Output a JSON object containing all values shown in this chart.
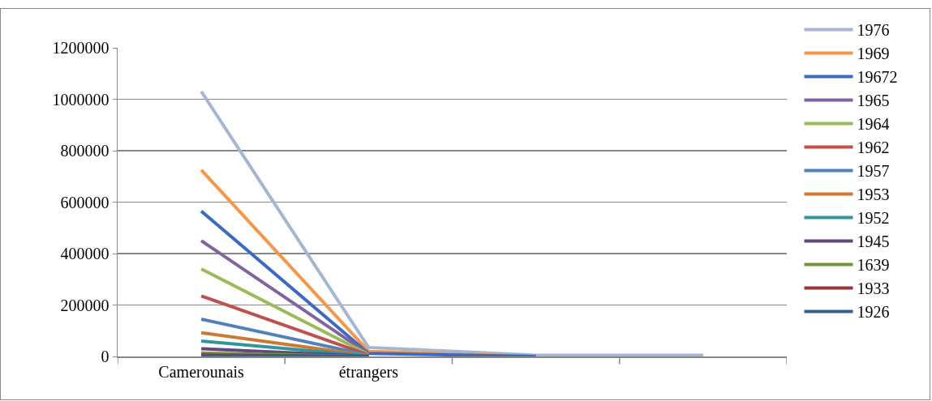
{
  "chart_data": {
    "type": "line",
    "categories": [
      "Camerounais",
      "étrangers",
      null,
      null
    ],
    "series": [
      {
        "name": "1976",
        "color": "#a5b6d4",
        "values": [
          1030000,
          35000,
          5000,
          5000
        ]
      },
      {
        "name": "1969",
        "color": "#f79646",
        "values": [
          725000,
          20000,
          0,
          null
        ]
      },
      {
        "name": "19672",
        "color": "#3a6bc4",
        "values": [
          565000,
          12000,
          0,
          null
        ]
      },
      {
        "name": "1965",
        "color": "#8064a2",
        "values": [
          450000,
          10000,
          null,
          null
        ]
      },
      {
        "name": "1964",
        "color": "#9bbb59",
        "values": [
          340000,
          8000,
          null,
          null
        ]
      },
      {
        "name": "1962",
        "color": "#c0504d",
        "values": [
          235000,
          6000,
          null,
          null
        ]
      },
      {
        "name": "1957",
        "color": "#4f81bd",
        "values": [
          145000,
          5000,
          null,
          null
        ]
      },
      {
        "name": "1953",
        "color": "#cc7a33",
        "values": [
          92000,
          3000,
          null,
          null
        ]
      },
      {
        "name": "1952",
        "color": "#31959f",
        "values": [
          60000,
          2000,
          null,
          null
        ]
      },
      {
        "name": "1945",
        "color": "#604a7b",
        "values": [
          30000,
          1000,
          null,
          null
        ]
      },
      {
        "name": "1639",
        "color": "#77933c",
        "values": [
          13000,
          0,
          null,
          null
        ]
      },
      {
        "name": "1933",
        "color": "#953735",
        "values": [
          6000,
          0,
          null,
          null
        ]
      },
      {
        "name": "1926",
        "color": "#376092",
        "values": [
          1000,
          0,
          null,
          null
        ]
      }
    ],
    "ylim": [
      0,
      1200000
    ],
    "yticks": [
      0,
      200000,
      400000,
      600000,
      800000,
      1000000,
      1200000
    ],
    "grid": "y",
    "legend": "right",
    "marker": "none",
    "line_style": "solid"
  }
}
